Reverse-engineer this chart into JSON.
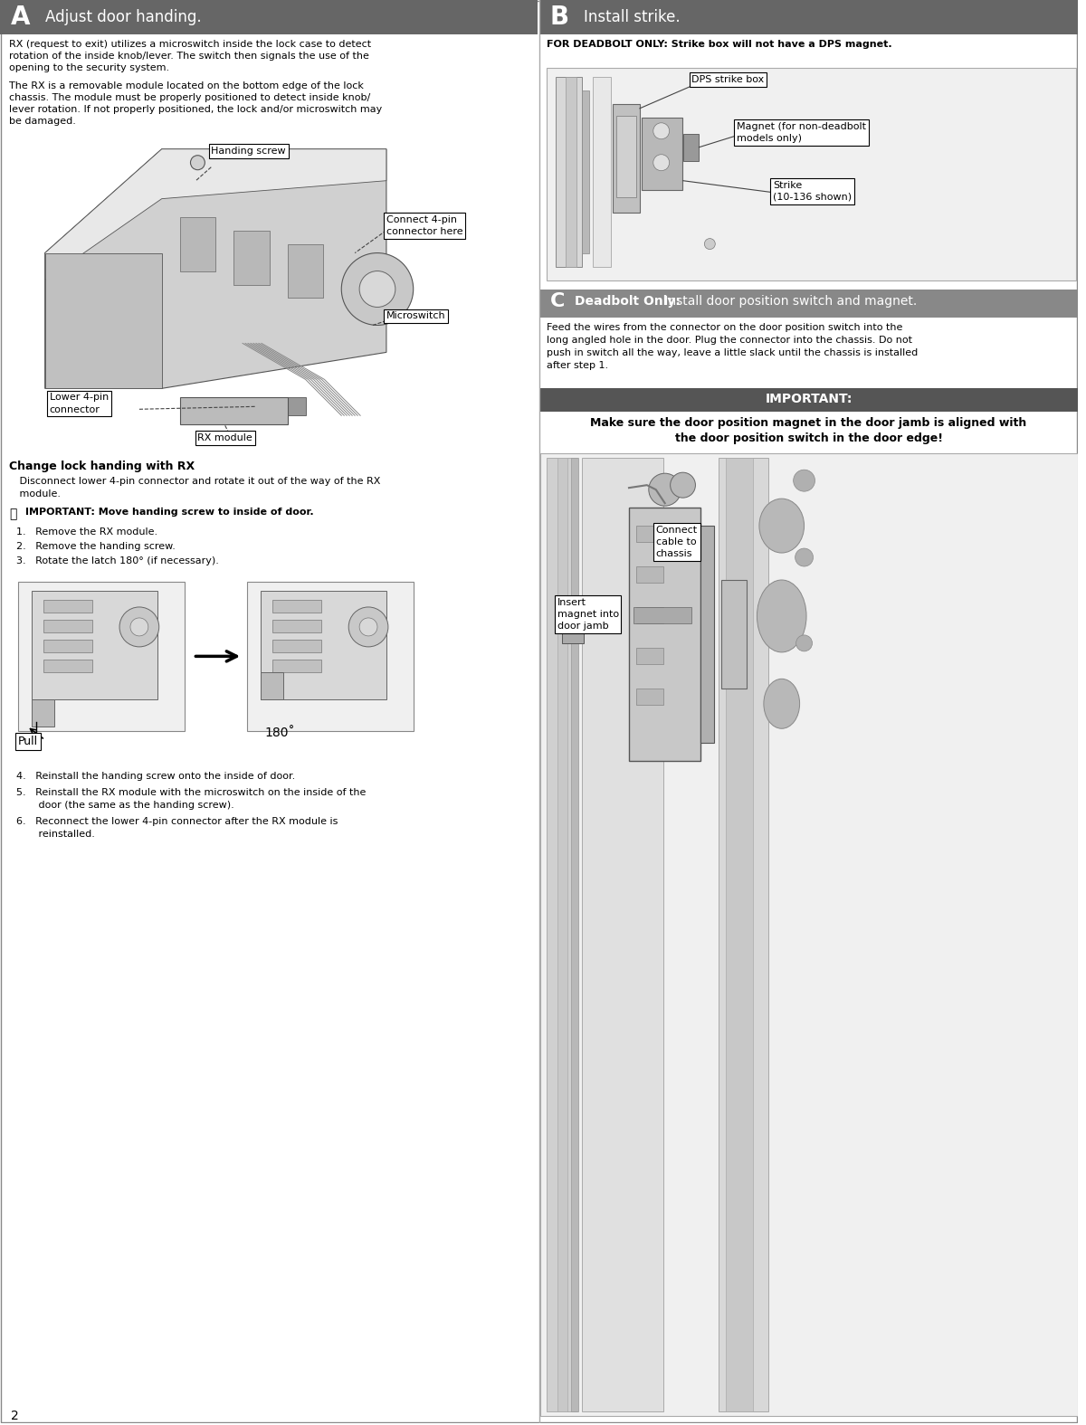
{
  "page_width": 12.0,
  "page_height": 15.75,
  "bg_color": "#ffffff",
  "header_bg": "#666666",
  "header_text_color": "#ffffff",
  "section_c_header_bg": "#888888",
  "divider_color": "#aaaaaa",
  "border_color": "#888888",
  "diagram_bg": "#f0f0f0",
  "diagram_edge": "#aaaaaa",
  "important_bar_bg": "#666666",
  "col_split": 0.5,
  "sections": {
    "A_header": "Adjust door handing.",
    "B_header": "Install strike.",
    "C_header_bold": "Deadbolt Only:",
    "C_header_normal": " Install door position switch and magnet.",
    "A_body1": "RX (request to exit) utilizes a microswitch inside the lock case to detect\nrotation of the inside knob/lever. The switch then signals the use of the\nopening to the security system.",
    "A_body2": "The RX is a removable module located on the bottom edge of the lock\nchassis. The module must be properly positioned to detect inside knob/\nlever rotation. If not properly positioned, the lock and/or microswitch may\nbe damaged.",
    "B_note": "FOR DEADBOLT ONLY: Strike box will not have a DPS magnet.",
    "C_body": "Feed the wires from the connector on the door position switch into the\nlong angled hole in the door. Plug the connector into the chassis. Do not\npush in switch all the way, leave a little slack until the chassis is installed\nafter step 1.",
    "important_header": "IMPORTANT:",
    "important_body": "Make sure the door position magnet in the door jamb is aligned with\nthe door position switch in the door edge!",
    "change_handing_title": "Change lock handing with RX",
    "change_handing_body": " Disconnect lower 4-pin connector and rotate it out of the way of the RX\n module.",
    "important_note": "IMPORTANT: Move handing screw to inside of door.",
    "steps_1_3": [
      "1.   Remove the RX module.",
      "2.   Remove the handing screw.",
      "3.   Rotate the latch 180° (if necessary)."
    ],
    "steps_4_6": [
      "4.   Reinstall the handing screw onto the inside of door.",
      "5.   Reinstall the RX module with the microswitch on the inside of the\n       door (the same as the handing screw).",
      "6.   Reconnect the lower 4-pin connector after the RX module is\n       reinstalled."
    ],
    "angle_label": "180˚",
    "pull_label": "Pull"
  },
  "callouts_A": {
    "handing_screw": "Handing screw",
    "connect_4pin": "Connect 4-pin\nconnector here",
    "microswitch": "Microswitch",
    "lower_4pin": "Lower 4-pin\nconnector",
    "rx_module": "RX module"
  },
  "callouts_B": {
    "dps_box": "DPS strike box",
    "magnet": "Magnet (for non-deadbolt\nmodels only)",
    "strike": "Strike\n(10-136 shown)"
  },
  "callouts_C": {
    "connect": "Connect\ncable to\nchassis",
    "insert": "Insert\nmagnet into\ndoor jamb"
  },
  "footer": "2"
}
